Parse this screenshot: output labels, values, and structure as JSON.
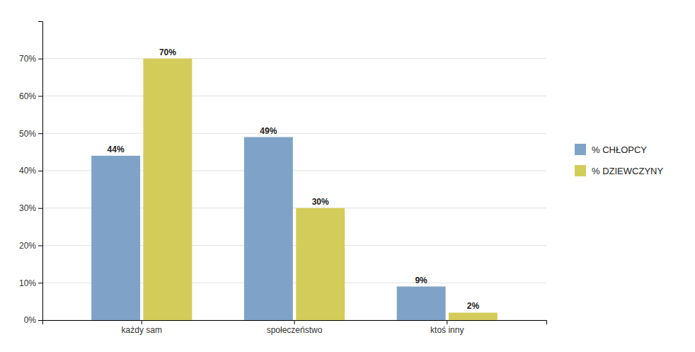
{
  "chart_data": {
    "type": "bar",
    "categories": [
      "każdy sam",
      "społeczeństwo",
      "ktoś inny"
    ],
    "series": [
      {
        "name": "% CHŁOPCY",
        "color": "#7fa3c8",
        "values": [
          44,
          49,
          9
        ],
        "value_labels": [
          "44%",
          "49%",
          "9%"
        ]
      },
      {
        "name": "% DZIEWCZYNY",
        "color": "#d4cc5a",
        "values": [
          70,
          30,
          2
        ],
        "value_labels": [
          "70%",
          "30%",
          "2%"
        ]
      }
    ],
    "ylim": [
      0,
      80
    ],
    "yticks": [
      {
        "value": 0,
        "label": "0%"
      },
      {
        "value": 10,
        "label": "10%"
      },
      {
        "value": 20,
        "label": "20%"
      },
      {
        "value": 30,
        "label": "30%"
      },
      {
        "value": 40,
        "label": "40%"
      },
      {
        "value": 50,
        "label": "50%"
      },
      {
        "value": 60,
        "label": "60%"
      },
      {
        "value": 70,
        "label": "70%"
      }
    ],
    "grid": true,
    "data_labels": true,
    "legend": "right"
  }
}
